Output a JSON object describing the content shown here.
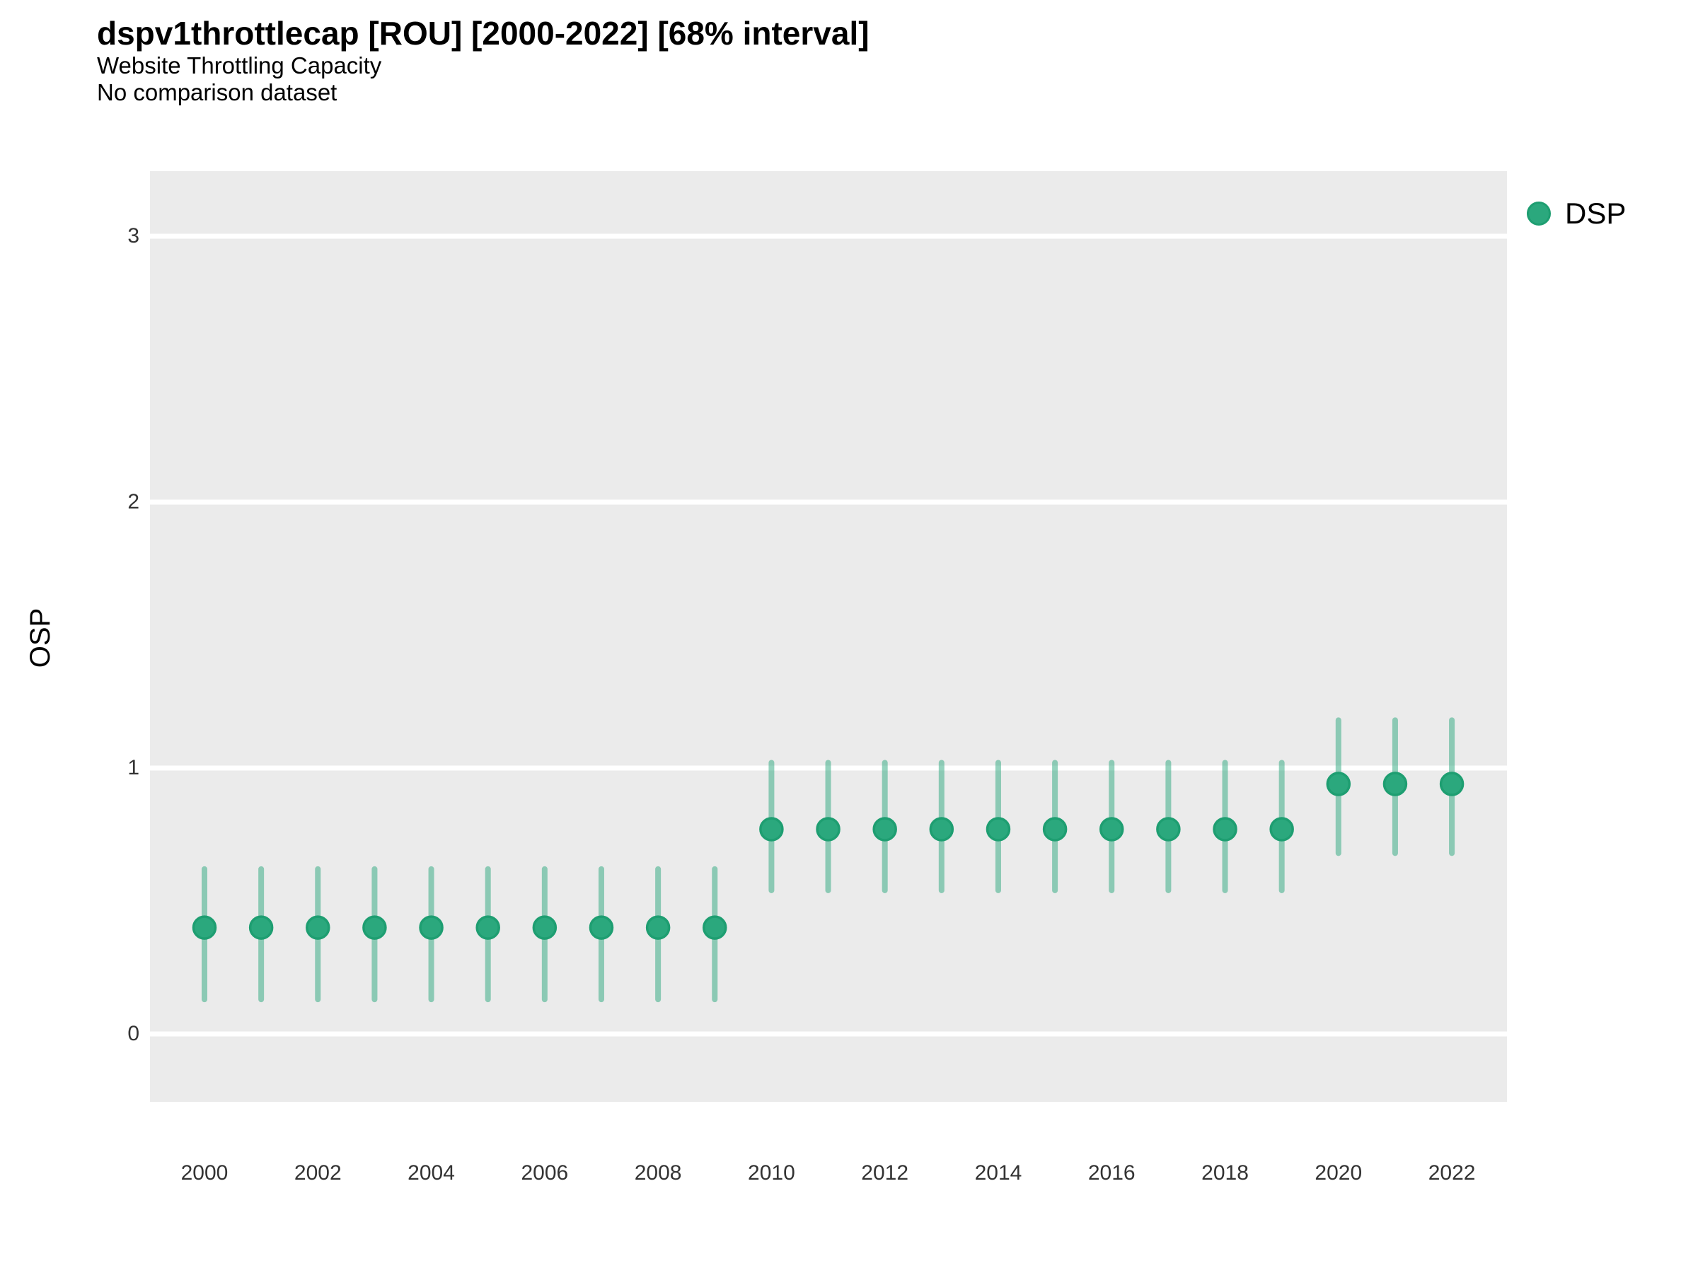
{
  "header": {
    "title": "dspv1throttlecap [ROU] [2000-2022] [68% interval]",
    "subtitle": "Website Throttling Capacity",
    "comparison_note": "No comparison dataset"
  },
  "axes": {
    "y_label": "OSP",
    "y_ticks": [
      0,
      1,
      2,
      3
    ],
    "x_ticks": [
      2000,
      2002,
      2004,
      2006,
      2008,
      2010,
      2012,
      2014,
      2016,
      2018,
      2020,
      2022
    ]
  },
  "legend": {
    "items": [
      {
        "label": "DSP",
        "marker": "circle-icon",
        "color": "#2BA87D"
      }
    ]
  },
  "colors": {
    "panel_background": "#EBEBEB",
    "gridline": "#FFFFFF",
    "point_fill": "#2BA87D",
    "point_stroke": "#1E9E71",
    "interval_bar": "rgba(43,168,125,0.5)",
    "text": "#000000",
    "tick_text": "#333333"
  },
  "chart_data": {
    "type": "pointrange",
    "title": "dspv1throttlecap [ROU] [2000-2022] [68% interval]",
    "subtitle": "Website Throttling Capacity",
    "note": "No comparison dataset",
    "xlabel": "",
    "ylabel": "OSP",
    "interval": "68%",
    "xlim": [
      1999,
      2023
    ],
    "ylim": [
      -0.26,
      3.25
    ],
    "grid": "horizontal-white-on-gray",
    "legend_position": "right",
    "series": [
      {
        "name": "DSP",
        "points": [
          {
            "x": 2000,
            "y": 0.4,
            "low": 0.13,
            "high": 0.62
          },
          {
            "x": 2001,
            "y": 0.4,
            "low": 0.13,
            "high": 0.62
          },
          {
            "x": 2002,
            "y": 0.4,
            "low": 0.13,
            "high": 0.62
          },
          {
            "x": 2003,
            "y": 0.4,
            "low": 0.13,
            "high": 0.62
          },
          {
            "x": 2004,
            "y": 0.4,
            "low": 0.13,
            "high": 0.62
          },
          {
            "x": 2005,
            "y": 0.4,
            "low": 0.13,
            "high": 0.62
          },
          {
            "x": 2006,
            "y": 0.4,
            "low": 0.13,
            "high": 0.62
          },
          {
            "x": 2007,
            "y": 0.4,
            "low": 0.13,
            "high": 0.62
          },
          {
            "x": 2008,
            "y": 0.4,
            "low": 0.13,
            "high": 0.62
          },
          {
            "x": 2009,
            "y": 0.4,
            "low": 0.13,
            "high": 0.62
          },
          {
            "x": 2010,
            "y": 0.77,
            "low": 0.54,
            "high": 1.02
          },
          {
            "x": 2011,
            "y": 0.77,
            "low": 0.54,
            "high": 1.02
          },
          {
            "x": 2012,
            "y": 0.77,
            "low": 0.54,
            "high": 1.02
          },
          {
            "x": 2013,
            "y": 0.77,
            "low": 0.54,
            "high": 1.02
          },
          {
            "x": 2014,
            "y": 0.77,
            "low": 0.54,
            "high": 1.02
          },
          {
            "x": 2015,
            "y": 0.77,
            "low": 0.54,
            "high": 1.02
          },
          {
            "x": 2016,
            "y": 0.77,
            "low": 0.54,
            "high": 1.02
          },
          {
            "x": 2017,
            "y": 0.77,
            "low": 0.54,
            "high": 1.02
          },
          {
            "x": 2018,
            "y": 0.77,
            "low": 0.54,
            "high": 1.02
          },
          {
            "x": 2019,
            "y": 0.77,
            "low": 0.54,
            "high": 1.02
          },
          {
            "x": 2020,
            "y": 0.94,
            "low": 0.68,
            "high": 1.18
          },
          {
            "x": 2021,
            "y": 0.94,
            "low": 0.68,
            "high": 1.18
          },
          {
            "x": 2022,
            "y": 0.94,
            "low": 0.68,
            "high": 1.18
          }
        ]
      }
    ]
  }
}
